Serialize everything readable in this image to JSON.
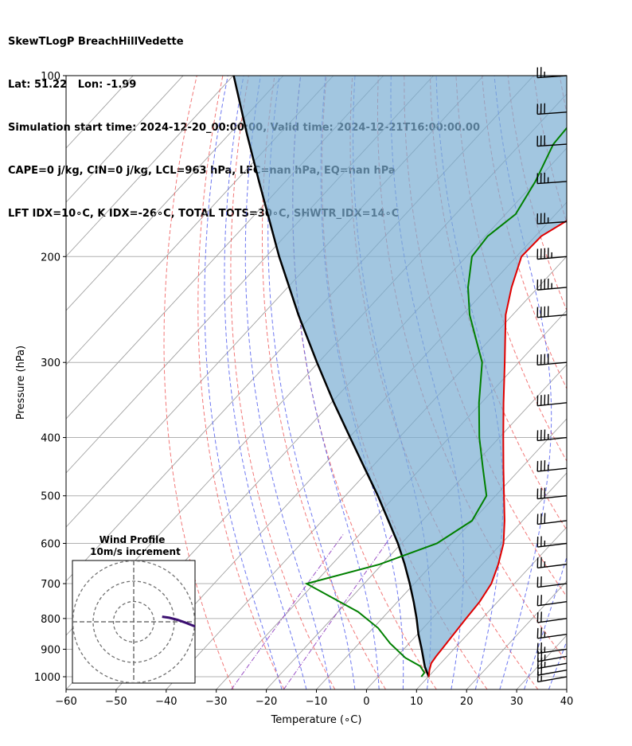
{
  "header": {
    "line1": "SkewTLogP BreachHillVedette",
    "line2": "Lat: 51.22   Lon: -1.99",
    "line3": "Simulation start time: 2024-12-20_00:00:00, Valid time: 2024-12-21T16:00:00.00",
    "line4": "CAPE=0 j/kg, CIN=0 j/kg, LCL=963 hPa, LFC=nan hPa, EQ=nan hPa",
    "line5": "LFT IDX=10∘C, K IDX=-26∘C, TOTAL TOTS=30∘C, SHWTR_IDX=14∘C"
  },
  "chart_data": {
    "type": "line",
    "subtype": "skew-t log-p",
    "xlabel": "Temperature (∘C)",
    "ylabel": "Pressure (hPa)",
    "xlim": [
      -60,
      40
    ],
    "ylim": [
      1050,
      100
    ],
    "y_scale": "log",
    "grid": true,
    "x_ticks": [
      "−60",
      "−50",
      "−40",
      "−30",
      "−20",
      "−10",
      "0",
      "10",
      "20",
      "30",
      "40"
    ],
    "y_ticks": [
      "100",
      "200",
      "300",
      "400",
      "500",
      "600",
      "700",
      "800",
      "900",
      "1000"
    ],
    "colors": {
      "temperature": "#e00000",
      "dewpoint": "#008000",
      "parcel": "#000000",
      "cin_shade": "#7aaed3",
      "dry_adiabat": "#f06060",
      "moist_adiabat": "#5560ee",
      "mixing_ratio": "#9040c0",
      "isotherm": "#a0a0a0"
    },
    "series": [
      {
        "key": "temperature",
        "p": [
          1000,
          975,
          950,
          925,
          900,
          850,
          800,
          750,
          700,
          650,
          600,
          550,
          500,
          450,
          400,
          350,
          300,
          250,
          225,
          200,
          185,
          170,
          150,
          130,
          115,
          100
        ],
        "t": [
          10.1,
          9.0,
          8.1,
          7.8,
          7.6,
          7.2,
          6.8,
          6.4,
          5.4,
          3.2,
          0.4,
          -3.6,
          -8.3,
          -13.5,
          -19.2,
          -25.6,
          -32.8,
          -41.4,
          -45.3,
          -49.0,
          -48.8,
          -45.6,
          -45.0,
          -46.5,
          -48.3,
          -51.2
        ]
      },
      {
        "key": "dewpoint",
        "p": [
          1000,
          985,
          960,
          930,
          880,
          830,
          780,
          700,
          650,
          600,
          550,
          500,
          450,
          400,
          350,
          300,
          250,
          225,
          200,
          185,
          170,
          150,
          130,
          115,
          100
        ],
        "t": [
          8.6,
          8.5,
          6.4,
          1.9,
          -3.8,
          -9.0,
          -16.0,
          -31.5,
          -20.5,
          -12.9,
          -10.1,
          -11.8,
          -17.6,
          -24.0,
          -30.5,
          -37.3,
          -48.6,
          -54.0,
          -58.9,
          -59.5,
          -58.0,
          -60.1,
          -63.4,
          -64.0,
          -64.7
        ]
      },
      {
        "key": "parcel",
        "p": [
          1000,
          963,
          900,
          850,
          800,
          750,
          700,
          650,
          600,
          550,
          500,
          450,
          400,
          350,
          300,
          250,
          200,
          150,
          125,
          100
        ],
        "t": [
          10.1,
          7.5,
          3.6,
          0.2,
          -3.1,
          -6.8,
          -10.9,
          -15.5,
          -20.7,
          -26.8,
          -33.5,
          -41.2,
          -49.8,
          -59.5,
          -70.3,
          -82.8,
          -97.4,
          -115.3,
          -126.5,
          -139.9
        ]
      }
    ],
    "wind_barbs": [
      {
        "p": 1000,
        "speed_kt": 15,
        "dir": 260
      },
      {
        "p": 975,
        "speed_kt": 20,
        "dir": 260
      },
      {
        "p": 950,
        "speed_kt": 25,
        "dir": 260
      },
      {
        "p": 925,
        "speed_kt": 25,
        "dir": 260
      },
      {
        "p": 900,
        "speed_kt": 25,
        "dir": 262
      },
      {
        "p": 850,
        "speed_kt": 25,
        "dir": 262
      },
      {
        "p": 800,
        "speed_kt": 20,
        "dir": 262
      },
      {
        "p": 750,
        "speed_kt": 20,
        "dir": 262
      },
      {
        "p": 700,
        "speed_kt": 20,
        "dir": 263
      },
      {
        "p": 650,
        "speed_kt": 25,
        "dir": 263
      },
      {
        "p": 600,
        "speed_kt": 25,
        "dir": 263
      },
      {
        "p": 550,
        "speed_kt": 30,
        "dir": 263
      },
      {
        "p": 500,
        "speed_kt": 30,
        "dir": 264
      },
      {
        "p": 450,
        "speed_kt": 35,
        "dir": 264
      },
      {
        "p": 400,
        "speed_kt": 35,
        "dir": 264
      },
      {
        "p": 350,
        "speed_kt": 40,
        "dir": 264
      },
      {
        "p": 300,
        "speed_kt": 40,
        "dir": 265
      },
      {
        "p": 250,
        "speed_kt": 40,
        "dir": 265
      },
      {
        "p": 225,
        "speed_kt": 45,
        "dir": 265
      },
      {
        "p": 200,
        "speed_kt": 45,
        "dir": 265
      },
      {
        "p": 175,
        "speed_kt": 35,
        "dir": 266
      },
      {
        "p": 150,
        "speed_kt": 35,
        "dir": 266
      },
      {
        "p": 130,
        "speed_kt": 30,
        "dir": 266
      },
      {
        "p": 115,
        "speed_kt": 30,
        "dir": 266
      },
      {
        "p": 100,
        "speed_kt": 25,
        "dir": 266
      }
    ],
    "hodograph": {
      "title": "Wind Profile",
      "subtitle": "10m/s increment",
      "u": [
        14.0,
        13.0,
        11.8,
        10.3,
        8.6,
        7.0,
        5.6
      ],
      "v": [
        -1.6,
        -1.2,
        -0.8,
        -0.2,
        0.4,
        0.8,
        1.0
      ]
    }
  }
}
